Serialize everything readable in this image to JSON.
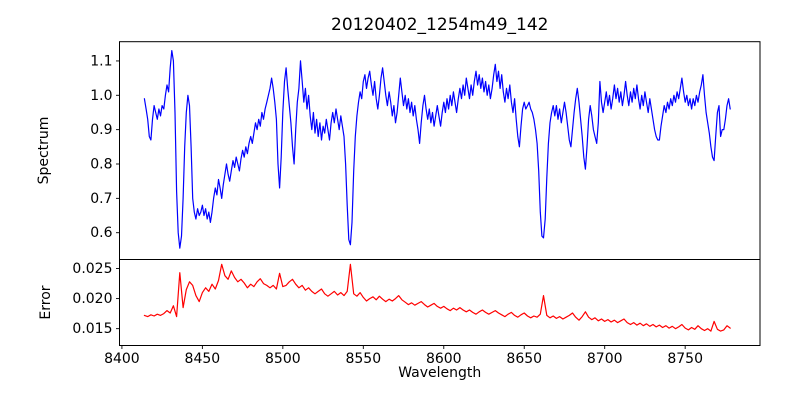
{
  "title": "20120402_1254m49_142",
  "colors": {
    "spectrum_line": "#0000ff",
    "error_line": "#ff0000",
    "axis": "#000000",
    "background": "#ffffff"
  },
  "chart_data": [
    {
      "type": "line",
      "title": "20120402_1254m49_142",
      "ylabel": "Spectrum",
      "legend": "none",
      "grid": false,
      "xlim": [
        8398.5,
        8796.5
      ],
      "ylim": [
        0.522,
        1.156
      ],
      "yticks": [
        0.6,
        0.7,
        0.8,
        0.9,
        1.0,
        1.1
      ],
      "ytick_labels": [
        "0.6",
        "0.7",
        "0.8",
        "0.9",
        "1.0",
        "1.1"
      ],
      "series": [
        {
          "name": "spectrum",
          "color": "#0000ff",
          "x_start": 8414,
          "x_step": 1,
          "values": [
            0.99,
            0.96,
            0.93,
            0.88,
            0.87,
            0.93,
            0.97,
            0.95,
            0.93,
            0.96,
            0.94,
            0.97,
            0.96,
            1.0,
            1.03,
            1.01,
            1.08,
            1.13,
            1.1,
            0.95,
            0.72,
            0.6,
            0.555,
            0.59,
            0.7,
            0.85,
            0.95,
            1.0,
            0.97,
            0.85,
            0.7,
            0.66,
            0.64,
            0.67,
            0.65,
            0.66,
            0.68,
            0.65,
            0.67,
            0.64,
            0.66,
            0.63,
            0.66,
            0.7,
            0.73,
            0.71,
            0.755,
            0.73,
            0.7,
            0.74,
            0.77,
            0.8,
            0.77,
            0.75,
            0.78,
            0.81,
            0.79,
            0.82,
            0.8,
            0.78,
            0.815,
            0.84,
            0.82,
            0.85,
            0.83,
            0.86,
            0.88,
            0.86,
            0.89,
            0.92,
            0.9,
            0.93,
            0.91,
            0.95,
            0.93,
            0.96,
            0.98,
            1.0,
            1.02,
            1.05,
            1.02,
            0.98,
            0.93,
            0.8,
            0.73,
            0.82,
            0.95,
            1.04,
            1.08,
            1.02,
            0.97,
            0.92,
            0.85,
            0.8,
            0.9,
            0.98,
            1.02,
            1.1,
            1.04,
            0.98,
            1.02,
            0.96,
            1.0,
            0.94,
            0.9,
            0.95,
            0.89,
            0.93,
            0.88,
            0.92,
            0.87,
            0.91,
            0.89,
            0.93,
            0.9,
            0.87,
            0.92,
            0.95,
            0.92,
            0.96,
            0.93,
            0.9,
            0.94,
            0.91,
            0.88,
            0.8,
            0.68,
            0.58,
            0.565,
            0.63,
            0.78,
            0.88,
            0.94,
            0.98,
            1.01,
            0.99,
            1.04,
            1.06,
            1.02,
            1.05,
            1.07,
            1.03,
            1.0,
            1.04,
            0.99,
            0.96,
            1.0,
            1.05,
            1.08,
            1.04,
            1.0,
            0.97,
            1.01,
            0.98,
            0.94,
            0.97,
            0.92,
            0.95,
            1.0,
            1.05,
            1.01,
            0.97,
            1.0,
            0.96,
            0.99,
            0.95,
            0.98,
            0.94,
            0.97,
            0.93,
            0.9,
            0.86,
            0.92,
            0.97,
            1.0,
            0.96,
            0.93,
            0.96,
            0.92,
            0.95,
            0.91,
            0.94,
            0.97,
            0.94,
            0.91,
            0.95,
            0.98,
            0.95,
            0.99,
            0.96,
            1.0,
            0.97,
            1.01,
            0.98,
            0.95,
            0.99,
            1.02,
            0.99,
            1.03,
            1.0,
            1.05,
            1.02,
            0.99,
            1.03,
            1.0,
            1.04,
            1.07,
            1.03,
            1.06,
            1.02,
            1.05,
            1.01,
            1.04,
            1.0,
            1.03,
            0.99,
            1.02,
            1.06,
            1.09,
            1.04,
            1.07,
            1.02,
            1.06,
            1.01,
            0.98,
            1.02,
            0.99,
            1.03,
            0.98,
            0.95,
            0.99,
            0.93,
            0.88,
            0.85,
            0.91,
            0.96,
            0.98,
            0.96,
            0.97,
            0.98,
            0.96,
            0.95,
            0.93,
            0.9,
            0.86,
            0.78,
            0.66,
            0.59,
            0.585,
            0.64,
            0.76,
            0.86,
            0.92,
            0.95,
            0.97,
            0.94,
            0.97,
            0.93,
            0.96,
            0.92,
            0.95,
            0.98,
            0.95,
            0.91,
            0.87,
            0.85,
            0.9,
            0.95,
            0.99,
            1.02,
            0.98,
            0.93,
            0.88,
            0.82,
            0.785,
            0.85,
            0.93,
            0.97,
            0.94,
            0.9,
            0.88,
            0.86,
            0.92,
            1.04,
            0.98,
            0.95,
            0.98,
            1.01,
            0.97,
            1.0,
            0.96,
            0.99,
            1.03,
            0.99,
            1.02,
            0.98,
            1.01,
            0.97,
            1.0,
            1.04,
            1.0,
            0.97,
            1.01,
            0.98,
            1.02,
            0.99,
            1.03,
            0.99,
            0.96,
            1.0,
            0.97,
            1.01,
            0.98,
            0.95,
            0.99,
            0.96,
            0.93,
            0.9,
            0.88,
            0.87,
            0.87,
            0.91,
            0.94,
            0.97,
            0.95,
            0.98,
            0.96,
            0.99,
            0.97,
            1.0,
            0.98,
            1.01,
            0.99,
            1.02,
            1.05,
            1.01,
            0.98,
            1.0,
            0.97,
            0.99,
            0.96,
            0.99,
            0.97,
            1.0,
            0.98,
            1.01,
            1.03,
            1.06,
            1.0,
            0.95,
            0.92,
            0.89,
            0.85,
            0.82,
            0.81,
            0.88,
            0.95,
            0.97,
            0.88,
            0.9,
            0.9,
            0.93,
            0.97,
            0.99,
            0.96
          ]
        }
      ]
    },
    {
      "type": "line",
      "ylabel": "Error",
      "xlabel": "Wavelength",
      "legend": "none",
      "grid": false,
      "xlim": [
        8398.5,
        8796.5
      ],
      "ylim": [
        0.0122,
        0.0265
      ],
      "yticks": [
        0.015,
        0.02,
        0.025
      ],
      "ytick_labels": [
        "0.015",
        "0.020",
        "0.025"
      ],
      "xticks": [
        8400,
        8450,
        8500,
        8550,
        8600,
        8650,
        8700,
        8750
      ],
      "xtick_labels": [
        "8400",
        "8450",
        "8500",
        "8550",
        "8600",
        "8650",
        "8700",
        "8750"
      ],
      "series": [
        {
          "name": "error",
          "color": "#ff0000",
          "x_start": 8414,
          "x_step": 2,
          "values": [
            0.0172,
            0.017,
            0.0173,
            0.0171,
            0.0174,
            0.0172,
            0.0175,
            0.018,
            0.0176,
            0.0188,
            0.017,
            0.0243,
            0.0185,
            0.0215,
            0.0228,
            0.0222,
            0.0205,
            0.0195,
            0.021,
            0.0218,
            0.0212,
            0.0224,
            0.0216,
            0.023,
            0.0257,
            0.0238,
            0.0232,
            0.0246,
            0.0235,
            0.0228,
            0.0232,
            0.0226,
            0.0218,
            0.0224,
            0.022,
            0.0228,
            0.0233,
            0.0225,
            0.0222,
            0.0218,
            0.0222,
            0.0216,
            0.0242,
            0.022,
            0.0222,
            0.0228,
            0.0232,
            0.0224,
            0.0218,
            0.0222,
            0.0214,
            0.0218,
            0.0212,
            0.0208,
            0.0212,
            0.0216,
            0.0208,
            0.0204,
            0.0208,
            0.0212,
            0.0206,
            0.021,
            0.0205,
            0.0212,
            0.0257,
            0.0208,
            0.0204,
            0.021,
            0.0202,
            0.0196,
            0.02,
            0.0203,
            0.0198,
            0.0204,
            0.0199,
            0.0195,
            0.0199,
            0.0196,
            0.02,
            0.0205,
            0.0198,
            0.0194,
            0.019,
            0.0193,
            0.0189,
            0.0192,
            0.0195,
            0.019,
            0.0186,
            0.0189,
            0.0192,
            0.0187,
            0.0184,
            0.0187,
            0.0183,
            0.018,
            0.0184,
            0.0181,
            0.0185,
            0.0181,
            0.0178,
            0.0181,
            0.0177,
            0.0174,
            0.0178,
            0.0181,
            0.0177,
            0.0174,
            0.0177,
            0.018,
            0.0176,
            0.0173,
            0.017,
            0.0174,
            0.0177,
            0.0172,
            0.0169,
            0.0173,
            0.0176,
            0.0171,
            0.0168,
            0.0171,
            0.0169,
            0.0174,
            0.0205,
            0.0172,
            0.0168,
            0.0171,
            0.0167,
            0.017,
            0.0166,
            0.0169,
            0.0172,
            0.0176,
            0.0169,
            0.0164,
            0.017,
            0.0178,
            0.0169,
            0.0165,
            0.0168,
            0.0163,
            0.0166,
            0.0162,
            0.0165,
            0.0161,
            0.0164,
            0.016,
            0.0163,
            0.0166,
            0.016,
            0.0157,
            0.016,
            0.0156,
            0.0159,
            0.0155,
            0.0158,
            0.0154,
            0.0157,
            0.0153,
            0.0156,
            0.0152,
            0.0155,
            0.0151,
            0.0154,
            0.015,
            0.0153,
            0.0157,
            0.0151,
            0.0148,
            0.0152,
            0.0149,
            0.0155,
            0.015,
            0.0147,
            0.015,
            0.0146,
            0.0162,
            0.0149,
            0.0146,
            0.0148,
            0.0155,
            0.0151
          ]
        }
      ]
    }
  ]
}
